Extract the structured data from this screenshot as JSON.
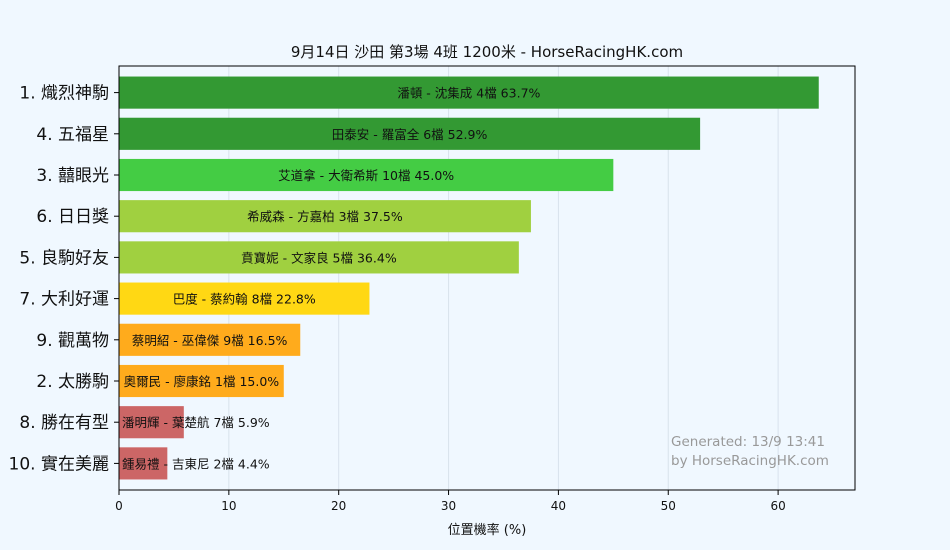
{
  "chart_data": {
    "type": "bar",
    "orientation": "horizontal",
    "title": "9月14日  沙田  第3場  4班  1200米 - HorseRacingHK.com",
    "xlabel": "位置機率 (%)",
    "ylabel": "",
    "xlim": [
      0,
      67
    ],
    "xticks": [
      0,
      10,
      20,
      30,
      40,
      50,
      60
    ],
    "grid": "vertical",
    "categories": [
      "1. 熾烈神駒",
      "4. 五福星",
      "3. 囍眼光",
      "6. 日日獎",
      "5. 良駒好友",
      "7. 大利好運",
      "9. 觀萬物",
      "2. 太勝駒",
      "8. 勝在有型",
      "10. 實在美麗"
    ],
    "values": [
      63.7,
      52.9,
      45.0,
      37.5,
      36.4,
      22.8,
      16.5,
      15.0,
      5.9,
      4.4
    ],
    "bar_labels": [
      "潘頓 - 沈集成 4檔  63.7%",
      "田泰安 - 羅富全 6檔  52.9%",
      "艾道拿 - 大衛希斯 10檔  45.0%",
      "希威森 - 方嘉柏 3檔  37.5%",
      "賁寶妮 - 文家良 5檔  36.4%",
      "巴度 - 蔡約翰 8檔  22.8%",
      "蔡明紹 - 巫偉傑 9檔  16.5%",
      "奧爾民 - 廖康銘 1檔  15.0%",
      "潘明輝 - 葉楚航 7檔  5.9%",
      "鍾易禮 - 吉東尼 2檔  4.4%"
    ],
    "colors": [
      "#339933",
      "#339933",
      "#44cc44",
      "#a0d040",
      "#a0d040",
      "#ffd814",
      "#ffab1c",
      "#ffab1c",
      "#cc6666",
      "#cc6666"
    ]
  },
  "watermark": {
    "line1": "Generated: 13/9 13:41",
    "line2": "by HorseRacingHK.com"
  },
  "style": {
    "background": "#f0f8ff",
    "plot_background": "#f0f8ff",
    "grid_color": "#d8e2ec"
  }
}
